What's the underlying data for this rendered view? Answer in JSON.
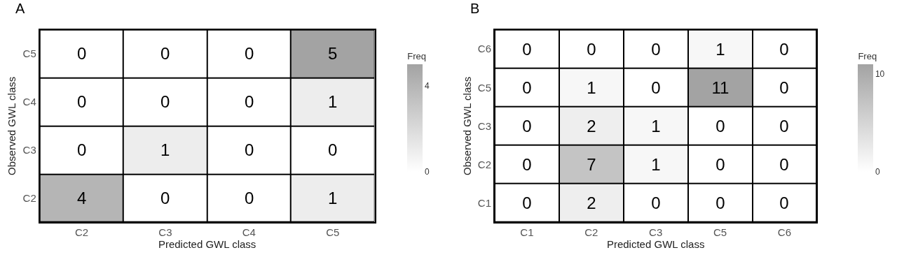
{
  "chart_data": [
    {
      "type": "heatmap",
      "title": "A",
      "xlabel": "Predicted GWL class",
      "ylabel": "Observed GWL class",
      "clabel": "Freq",
      "categories": [
        "C2",
        "C3",
        "C4",
        "C5"
      ],
      "y_categories": [
        "C5",
        "C4",
        "C3",
        "C2"
      ],
      "cells": [
        [
          0,
          0,
          0,
          5
        ],
        [
          0,
          0,
          0,
          1
        ],
        [
          0,
          1,
          0,
          0
        ],
        [
          4,
          0,
          0,
          1
        ]
      ],
      "clim": [
        0,
        5
      ],
      "cticks": [
        0,
        4
      ],
      "data_labels": true
    },
    {
      "type": "heatmap",
      "title": "B",
      "xlabel": "Predicted GWL class",
      "ylabel": "Observed GWL class",
      "clabel": "Freq",
      "categories": [
        "C1",
        "C2",
        "C3",
        "C5",
        "C6"
      ],
      "y_categories": [
        "C6",
        "C5",
        "C3",
        "C2",
        "C1"
      ],
      "cells": [
        [
          0,
          0,
          0,
          1,
          0
        ],
        [
          0,
          1,
          0,
          11,
          0
        ],
        [
          0,
          2,
          1,
          0,
          0
        ],
        [
          0,
          7,
          1,
          0,
          0
        ],
        [
          0,
          2,
          0,
          0,
          0
        ]
      ],
      "clim": [
        0,
        11
      ],
      "cticks": [
        0,
        10
      ],
      "data_labels": true
    }
  ]
}
